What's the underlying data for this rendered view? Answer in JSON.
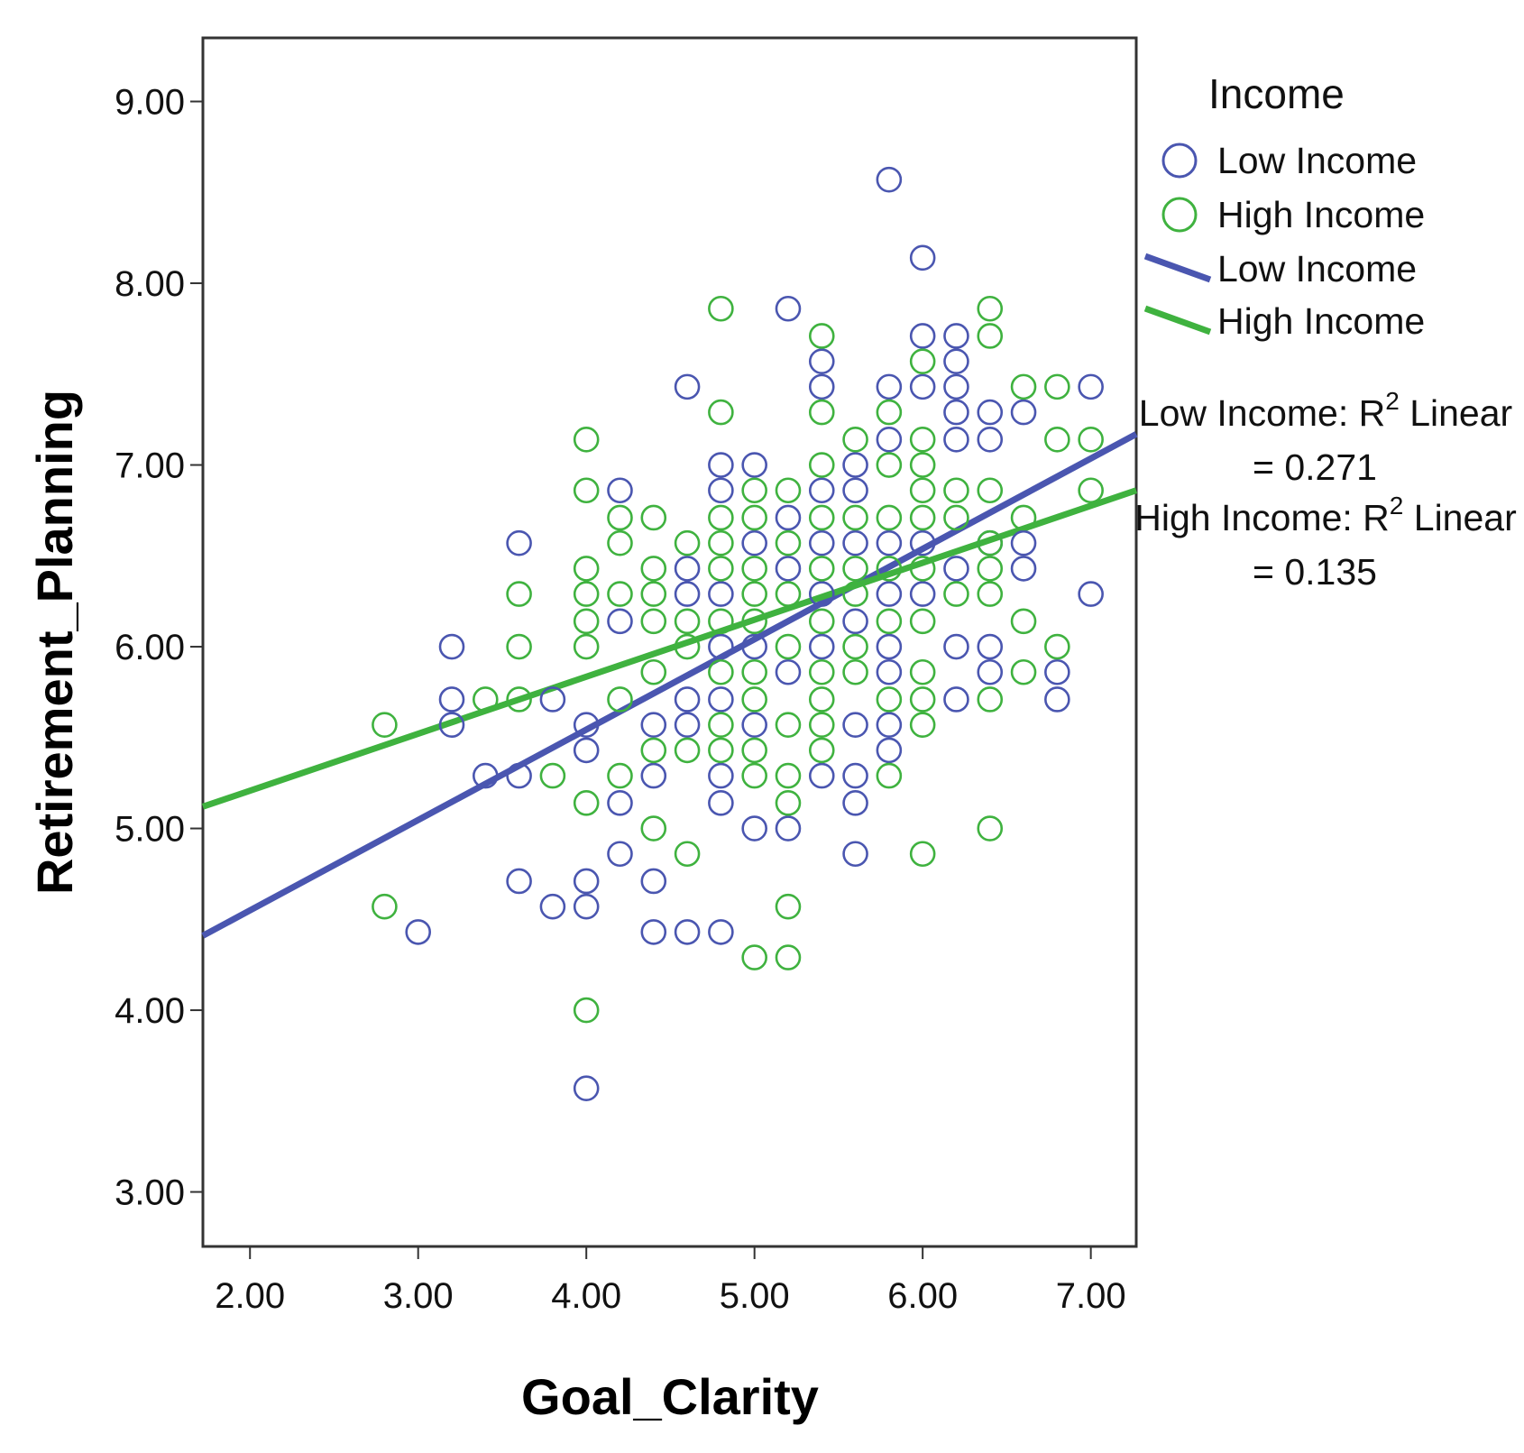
{
  "chart_data": {
    "type": "scatter",
    "xlabel": "Goal_Clarity",
    "ylabel": "Retirement_Planning",
    "xlim": [
      1.72,
      7.27
    ],
    "ylim": [
      2.7,
      9.35
    ],
    "xticks": [
      "2.00",
      "3.00",
      "4.00",
      "5.00",
      "6.00",
      "7.00"
    ],
    "yticks": [
      "3.00",
      "4.00",
      "5.00",
      "6.00",
      "7.00",
      "8.00",
      "9.00"
    ],
    "grid": false,
    "legend": {
      "title": "Income",
      "placement": "right",
      "entries": [
        {
          "label": "Low Income",
          "kind": "marker",
          "color": "#4a56b0"
        },
        {
          "label": "High Income",
          "kind": "marker",
          "color": "#3fb23f"
        },
        {
          "label": "Low Income",
          "kind": "line",
          "color": "#4a56b0"
        },
        {
          "label": "High Income",
          "kind": "line",
          "color": "#3fb23f"
        }
      ]
    },
    "annotations": [
      {
        "line1": "Low Income: R",
        "sup": "2",
        "line1_end": " Linear",
        "line2": "= 0.271"
      },
      {
        "line1": "High Income: R",
        "sup": "2",
        "line1_end": " Linear",
        "line2": "= 0.135"
      }
    ],
    "fit_lines": [
      {
        "name": "Low Income",
        "color": "#4a56b0",
        "x": [
          1.72,
          7.27
        ],
        "y": [
          4.41,
          7.17
        ],
        "r2": 0.271
      },
      {
        "name": "High Income",
        "color": "#3fb23f",
        "x": [
          1.72,
          7.27
        ],
        "y": [
          5.12,
          6.86
        ],
        "r2": 0.135
      }
    ],
    "series": [
      {
        "name": "Low Income",
        "color": "#4a56b0",
        "points": [
          [
            3.0,
            4.43
          ],
          [
            3.2,
            6.0
          ],
          [
            3.2,
            5.71
          ],
          [
            3.2,
            5.57
          ],
          [
            3.4,
            5.29
          ],
          [
            3.6,
            6.57
          ],
          [
            3.6,
            5.29
          ],
          [
            3.6,
            4.71
          ],
          [
            3.8,
            5.71
          ],
          [
            3.8,
            4.57
          ],
          [
            4.0,
            5.57
          ],
          [
            4.0,
            5.43
          ],
          [
            4.0,
            4.71
          ],
          [
            4.0,
            4.57
          ],
          [
            4.0,
            3.57
          ],
          [
            4.2,
            6.86
          ],
          [
            4.2,
            6.14
          ],
          [
            4.2,
            5.14
          ],
          [
            4.2,
            4.86
          ],
          [
            4.4,
            5.57
          ],
          [
            4.4,
            5.29
          ],
          [
            4.4,
            4.71
          ],
          [
            4.4,
            4.43
          ],
          [
            4.6,
            7.43
          ],
          [
            4.6,
            6.43
          ],
          [
            4.6,
            6.29
          ],
          [
            4.6,
            5.71
          ],
          [
            4.6,
            5.57
          ],
          [
            4.6,
            4.43
          ],
          [
            4.8,
            7.0
          ],
          [
            4.8,
            6.86
          ],
          [
            4.8,
            6.29
          ],
          [
            4.8,
            6.0
          ],
          [
            4.8,
            5.71
          ],
          [
            4.8,
            5.29
          ],
          [
            4.8,
            5.14
          ],
          [
            4.8,
            4.43
          ],
          [
            5.0,
            7.0
          ],
          [
            5.0,
            6.57
          ],
          [
            5.0,
            6.0
          ],
          [
            5.0,
            5.57
          ],
          [
            5.0,
            5.0
          ],
          [
            5.2,
            7.86
          ],
          [
            5.2,
            6.71
          ],
          [
            5.2,
            6.43
          ],
          [
            5.2,
            5.86
          ],
          [
            5.2,
            5.0
          ],
          [
            5.4,
            7.57
          ],
          [
            5.4,
            7.43
          ],
          [
            5.4,
            6.86
          ],
          [
            5.4,
            6.57
          ],
          [
            5.4,
            6.29
          ],
          [
            5.4,
            6.0
          ],
          [
            5.4,
            5.29
          ],
          [
            5.6,
            7.0
          ],
          [
            5.6,
            6.86
          ],
          [
            5.6,
            6.57
          ],
          [
            5.6,
            6.14
          ],
          [
            5.6,
            5.57
          ],
          [
            5.6,
            5.29
          ],
          [
            5.6,
            5.14
          ],
          [
            5.6,
            4.86
          ],
          [
            5.8,
            8.57
          ],
          [
            5.8,
            7.43
          ],
          [
            5.8,
            7.14
          ],
          [
            5.8,
            6.57
          ],
          [
            5.8,
            6.29
          ],
          [
            5.8,
            6.0
          ],
          [
            5.8,
            5.86
          ],
          [
            5.8,
            5.57
          ],
          [
            5.8,
            5.43
          ],
          [
            6.0,
            8.14
          ],
          [
            6.0,
            7.71
          ],
          [
            6.0,
            7.43
          ],
          [
            6.0,
            6.57
          ],
          [
            6.0,
            6.29
          ],
          [
            6.2,
            7.71
          ],
          [
            6.2,
            7.57
          ],
          [
            6.2,
            7.43
          ],
          [
            6.2,
            7.29
          ],
          [
            6.2,
            7.14
          ],
          [
            6.2,
            6.43
          ],
          [
            6.2,
            6.0
          ],
          [
            6.2,
            5.71
          ],
          [
            6.4,
            7.29
          ],
          [
            6.4,
            7.14
          ],
          [
            6.4,
            6.57
          ],
          [
            6.4,
            6.0
          ],
          [
            6.4,
            5.86
          ],
          [
            6.6,
            7.29
          ],
          [
            6.6,
            6.57
          ],
          [
            6.6,
            6.43
          ],
          [
            6.8,
            5.86
          ],
          [
            6.8,
            5.71
          ],
          [
            7.0,
            7.43
          ],
          [
            7.0,
            6.29
          ]
        ]
      },
      {
        "name": "High Income",
        "color": "#3fb23f",
        "points": [
          [
            2.8,
            5.57
          ],
          [
            2.8,
            4.57
          ],
          [
            3.4,
            5.71
          ],
          [
            3.6,
            6.29
          ],
          [
            3.6,
            6.0
          ],
          [
            3.6,
            5.71
          ],
          [
            3.8,
            5.29
          ],
          [
            4.0,
            7.14
          ],
          [
            4.0,
            6.86
          ],
          [
            4.0,
            6.43
          ],
          [
            4.0,
            6.29
          ],
          [
            4.0,
            6.14
          ],
          [
            4.0,
            6.0
          ],
          [
            4.0,
            5.14
          ],
          [
            4.0,
            4.0
          ],
          [
            4.2,
            6.71
          ],
          [
            4.2,
            6.57
          ],
          [
            4.2,
            6.29
          ],
          [
            4.2,
            5.71
          ],
          [
            4.2,
            5.29
          ],
          [
            4.4,
            6.71
          ],
          [
            4.4,
            6.43
          ],
          [
            4.4,
            6.29
          ],
          [
            4.4,
            6.14
          ],
          [
            4.4,
            5.86
          ],
          [
            4.4,
            5.43
          ],
          [
            4.4,
            5.0
          ],
          [
            4.6,
            6.57
          ],
          [
            4.6,
            6.14
          ],
          [
            4.6,
            6.0
          ],
          [
            4.6,
            5.43
          ],
          [
            4.6,
            4.86
          ],
          [
            4.8,
            7.86
          ],
          [
            4.8,
            7.29
          ],
          [
            4.8,
            6.71
          ],
          [
            4.8,
            6.57
          ],
          [
            4.8,
            6.43
          ],
          [
            4.8,
            6.14
          ],
          [
            4.8,
            5.86
          ],
          [
            4.8,
            5.57
          ],
          [
            4.8,
            5.43
          ],
          [
            5.0,
            6.86
          ],
          [
            5.0,
            6.71
          ],
          [
            5.0,
            6.43
          ],
          [
            5.0,
            6.29
          ],
          [
            5.0,
            6.14
          ],
          [
            5.0,
            5.86
          ],
          [
            5.0,
            5.71
          ],
          [
            5.0,
            5.43
          ],
          [
            5.0,
            5.29
          ],
          [
            5.0,
            4.29
          ],
          [
            5.2,
            6.86
          ],
          [
            5.2,
            6.57
          ],
          [
            5.2,
            6.29
          ],
          [
            5.2,
            6.0
          ],
          [
            5.2,
            5.57
          ],
          [
            5.2,
            5.29
          ],
          [
            5.2,
            5.14
          ],
          [
            5.2,
            4.57
          ],
          [
            5.2,
            4.29
          ],
          [
            5.4,
            7.71
          ],
          [
            5.4,
            7.29
          ],
          [
            5.4,
            7.0
          ],
          [
            5.4,
            6.71
          ],
          [
            5.4,
            6.43
          ],
          [
            5.4,
            6.14
          ],
          [
            5.4,
            5.86
          ],
          [
            5.4,
            5.71
          ],
          [
            5.4,
            5.57
          ],
          [
            5.4,
            5.43
          ],
          [
            5.6,
            7.14
          ],
          [
            5.6,
            6.71
          ],
          [
            5.6,
            6.43
          ],
          [
            5.6,
            6.29
          ],
          [
            5.6,
            6.0
          ],
          [
            5.6,
            5.86
          ],
          [
            5.8,
            7.29
          ],
          [
            5.8,
            7.0
          ],
          [
            5.8,
            6.71
          ],
          [
            5.8,
            6.43
          ],
          [
            5.8,
            6.14
          ],
          [
            5.8,
            5.71
          ],
          [
            5.8,
            5.29
          ],
          [
            6.0,
            7.57
          ],
          [
            6.0,
            7.14
          ],
          [
            6.0,
            7.0
          ],
          [
            6.0,
            6.86
          ],
          [
            6.0,
            6.71
          ],
          [
            6.0,
            6.43
          ],
          [
            6.0,
            6.14
          ],
          [
            6.0,
            5.86
          ],
          [
            6.0,
            5.71
          ],
          [
            6.0,
            5.57
          ],
          [
            6.0,
            4.86
          ],
          [
            6.2,
            6.86
          ],
          [
            6.2,
            6.71
          ],
          [
            6.2,
            6.29
          ],
          [
            6.4,
            7.86
          ],
          [
            6.4,
            7.71
          ],
          [
            6.4,
            6.86
          ],
          [
            6.4,
            6.57
          ],
          [
            6.4,
            6.43
          ],
          [
            6.4,
            6.29
          ],
          [
            6.4,
            5.71
          ],
          [
            6.4,
            5.0
          ],
          [
            6.6,
            7.43
          ],
          [
            6.6,
            6.71
          ],
          [
            6.6,
            6.14
          ],
          [
            6.6,
            5.86
          ],
          [
            6.8,
            7.43
          ],
          [
            6.8,
            7.14
          ],
          [
            6.8,
            6.0
          ],
          [
            7.0,
            7.14
          ],
          [
            7.0,
            6.86
          ]
        ]
      }
    ]
  }
}
